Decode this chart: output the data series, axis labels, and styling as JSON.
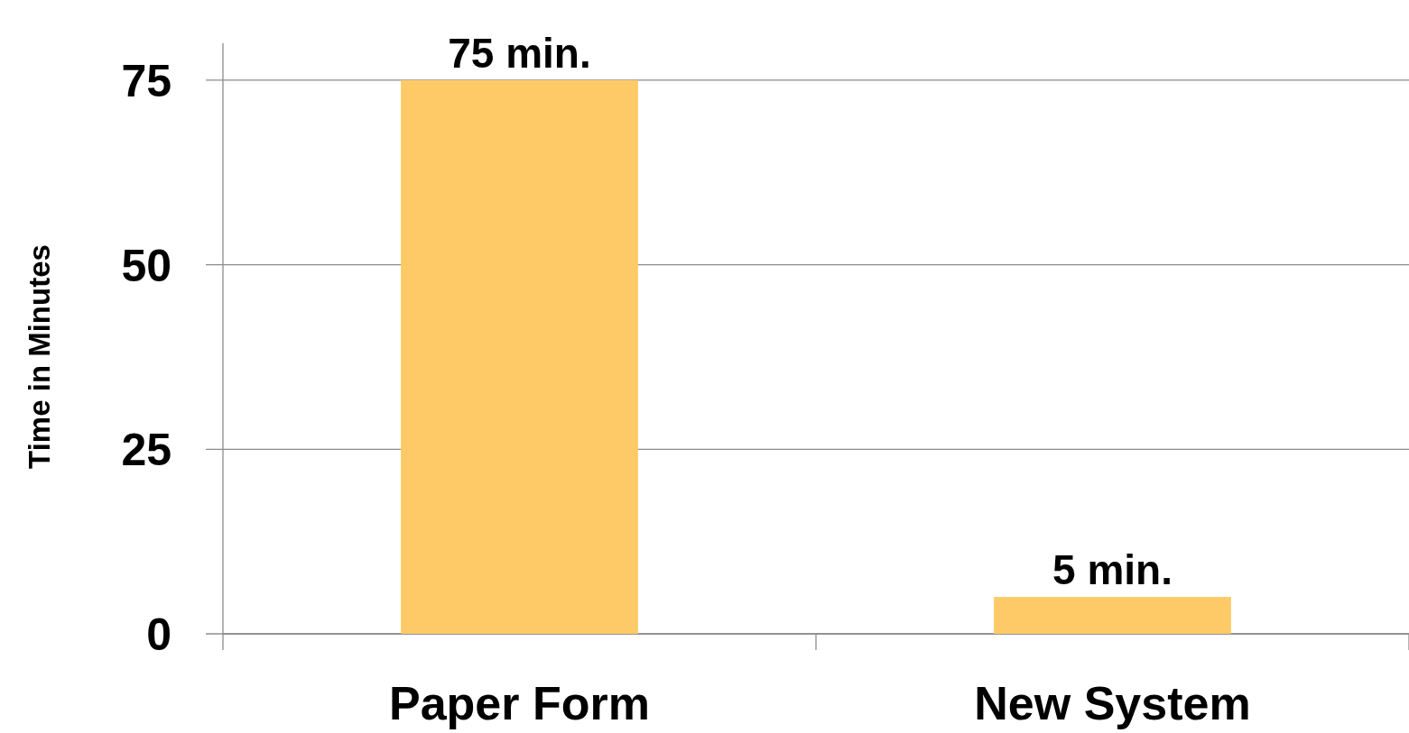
{
  "chart_data": {
    "type": "bar",
    "ylabel": "Time in Minutes",
    "categories": [
      "Paper Form",
      "New System"
    ],
    "values": [
      75,
      5
    ],
    "value_labels": [
      "75 min.",
      "5 min."
    ],
    "color": "#fdca67",
    "ylim": [
      0,
      80
    ],
    "yticks": [
      0,
      25,
      50,
      75
    ],
    "grid": "y"
  }
}
